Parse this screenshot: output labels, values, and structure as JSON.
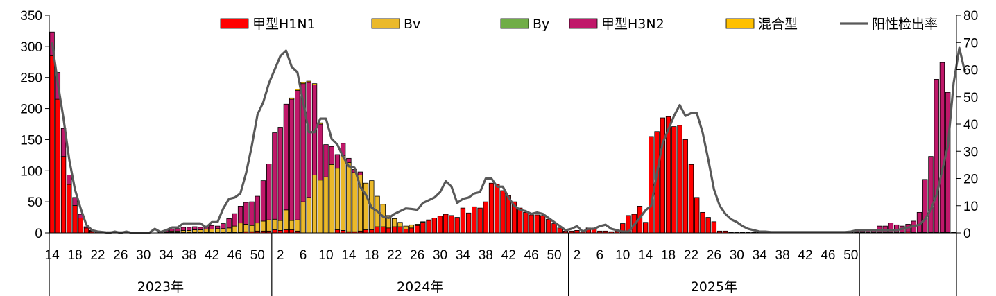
{
  "chart_data": {
    "type": "bar",
    "stacked": true,
    "title": "",
    "xlabel": "",
    "ylabel": "",
    "ylim": [
      0,
      350
    ],
    "yticks": [
      0,
      50,
      100,
      150,
      200,
      250,
      300,
      350
    ],
    "y2lim": [
      0,
      80
    ],
    "y2ticks": [
      0,
      10,
      20,
      30,
      40,
      50,
      60,
      70,
      80
    ],
    "grid": false,
    "legend_position": "top",
    "years": [
      {
        "label": "2023年",
        "start_week": 14,
        "end_week": 52
      },
      {
        "label": "2024年",
        "start_week": 1,
        "end_week": 52
      },
      {
        "label": "2025年",
        "start_week": 1,
        "end_week": 51
      }
    ],
    "week_tick_labels": [
      [
        "14",
        "18",
        "22",
        "26",
        "30",
        "34",
        "38",
        "42",
        "46",
        "50"
      ],
      [
        "2",
        "6",
        "10",
        "14",
        "18",
        "22",
        "26",
        "30",
        "34",
        "38",
        "42",
        "46",
        "50"
      ],
      [
        "2",
        "6",
        "10",
        "14",
        "18",
        "22",
        "26",
        "30",
        "34",
        "38",
        "42",
        "46",
        "50"
      ]
    ],
    "series": [
      {
        "name": "甲型H1N1",
        "color": "#ff0000",
        "kind": "bar",
        "values": [
          285,
          215,
          123,
          78,
          44,
          24,
          8,
          3,
          2,
          1,
          1,
          1,
          1,
          0,
          0,
          0,
          0,
          0,
          0,
          1,
          1,
          1,
          1,
          1,
          1,
          1,
          1,
          1,
          1,
          1,
          1,
          1,
          1,
          1,
          2,
          2,
          3,
          3,
          3,
          5,
          4,
          5,
          5,
          3,
          0,
          0,
          0,
          0,
          0,
          0,
          5,
          4,
          2,
          2,
          3,
          5,
          5,
          10,
          10,
          8,
          10,
          10,
          6,
          8,
          12,
          17,
          20,
          24,
          27,
          30,
          28,
          25,
          40,
          32,
          42,
          40,
          50,
          80,
          78,
          68,
          60,
          50,
          40,
          33,
          29,
          29,
          28,
          22,
          15,
          8,
          3,
          3,
          4,
          2,
          8,
          8,
          3,
          3,
          2,
          3,
          15,
          28,
          30,
          43,
          17,
          155,
          163,
          185,
          187,
          171,
          173,
          150,
          110,
          57,
          33,
          25,
          18,
          3,
          3,
          1,
          1,
          1,
          1,
          1,
          1,
          1,
          1,
          1,
          1,
          1,
          1,
          1,
          1,
          1,
          1,
          1,
          1,
          1,
          1,
          1,
          1,
          1,
          1,
          1,
          1,
          1,
          1,
          1,
          1,
          1,
          2,
          1,
          1,
          1,
          1,
          1,
          1,
          1,
          1
        ]
      },
      {
        "name": "Bv",
        "color": "#ebb92a",
        "kind": "bar",
        "values": [
          0,
          0,
          0,
          0,
          0,
          0,
          0,
          0,
          0,
          0,
          0,
          0,
          0,
          0,
          0,
          0,
          0,
          0,
          0,
          0,
          1,
          2,
          2,
          3,
          3,
          4,
          4,
          5,
          5,
          6,
          6,
          7,
          10,
          15,
          12,
          10,
          13,
          16,
          18,
          17,
          16,
          32,
          15,
          18,
          50,
          57,
          93,
          85,
          90,
          110,
          99,
          120,
          111,
          95,
          90,
          75,
          79,
          49,
          36,
          20,
          13,
          7,
          5,
          5,
          2,
          1,
          1,
          0,
          0,
          0,
          0,
          0,
          0,
          0,
          0,
          0,
          0,
          0,
          0,
          0,
          0,
          0,
          0,
          0,
          0,
          0,
          0,
          0,
          0,
          0,
          0,
          0,
          0,
          0,
          0,
          0,
          0,
          0,
          0,
          0,
          0,
          0,
          0,
          0,
          0,
          0,
          0,
          0,
          0,
          0,
          0,
          0,
          0,
          0,
          0,
          0,
          0,
          0,
          0,
          0,
          0,
          0,
          0,
          0,
          0,
          0,
          0,
          0,
          0,
          0,
          0,
          0,
          0,
          0,
          0,
          0,
          0,
          0,
          0,
          0,
          0,
          0,
          0,
          0,
          0,
          0,
          0,
          0,
          0,
          0,
          0,
          0,
          0,
          0,
          0,
          0,
          0,
          0,
          0,
          0,
          0,
          0,
          0,
          0,
          0,
          0,
          0,
          0,
          0,
          0,
          0,
          0
        ]
      },
      {
        "name": "By",
        "color": "#70ad47",
        "kind": "bar",
        "values": [
          0,
          0,
          0,
          0,
          0,
          0,
          0,
          0,
          0,
          0,
          0,
          0,
          0,
          0,
          0,
          0,
          0,
          0,
          0,
          0,
          0,
          0,
          0,
          0,
          0,
          0,
          0,
          0,
          0,
          0,
          0,
          0,
          0,
          0,
          0,
          0,
          0,
          0,
          0,
          0,
          0,
          0,
          0,
          0,
          0,
          0,
          0,
          0,
          0,
          0,
          0,
          0,
          0,
          0,
          0,
          0,
          0,
          0,
          0,
          0,
          0,
          0,
          0,
          0,
          0,
          0,
          0,
          0,
          0,
          0,
          0,
          0,
          0,
          0,
          0,
          0,
          0,
          0,
          0,
          0,
          0,
          0,
          0,
          0,
          0,
          0,
          0,
          0,
          0,
          0,
          0,
          0,
          0,
          0,
          0,
          0,
          0,
          0,
          0,
          0,
          0,
          0,
          0,
          0,
          0,
          0,
          0,
          0,
          0,
          0,
          0,
          0,
          0,
          0,
          0,
          0,
          0,
          0,
          0,
          0,
          0,
          0,
          0,
          0,
          0,
          0,
          0,
          0,
          0,
          0,
          0,
          0,
          0,
          0,
          0,
          0,
          0,
          0,
          0,
          0,
          0,
          0,
          0,
          0,
          0,
          0,
          0,
          0,
          0,
          0,
          0,
          0,
          0,
          0,
          0,
          0,
          0,
          0,
          0,
          0,
          0,
          0,
          0,
          0,
          0,
          0,
          0,
          0,
          0,
          0,
          0,
          0
        ]
      },
      {
        "name": "甲型H3N2",
        "color": "#c0186a",
        "kind": "bar",
        "values": [
          38,
          43,
          45,
          15,
          13,
          6,
          2,
          1,
          1,
          1,
          1,
          1,
          1,
          0,
          0,
          0,
          0,
          0,
          0,
          2,
          2,
          3,
          4,
          5,
          5,
          5,
          4,
          5,
          6,
          4,
          8,
          15,
          20,
          27,
          35,
          38,
          43,
          65,
          90,
          139,
          150,
          170,
          195,
          208,
          190,
          185,
          145,
          90,
          52,
          29,
          22,
          20,
          7,
          5,
          5,
          0,
          0,
          0,
          0,
          0,
          0,
          0,
          0,
          0,
          0,
          0,
          0,
          0,
          0,
          0,
          0,
          0,
          0,
          0,
          0,
          0,
          0,
          0,
          0,
          0,
          0,
          0,
          0,
          0,
          0,
          0,
          0,
          0,
          0,
          0,
          0,
          0,
          0,
          0,
          0,
          0,
          0,
          0,
          0,
          0,
          0,
          0,
          0,
          0,
          0,
          0,
          0,
          0,
          0,
          0,
          0,
          0,
          0,
          0,
          0,
          0,
          0,
          0,
          0,
          0,
          0,
          0,
          0,
          0,
          0,
          0,
          0,
          0,
          0,
          0,
          0,
          0,
          0,
          0,
          1,
          1,
          1,
          1,
          1,
          1,
          1,
          2,
          2,
          4,
          4,
          10,
          10,
          15,
          12,
          10,
          12,
          18,
          32,
          85,
          122,
          246,
          273,
          225,
          0,
          0,
          0,
          0,
          0,
          0,
          0,
          0,
          0,
          0,
          0,
          0,
          0
        ]
      },
      {
        "name": "混合型",
        "color": "#ffc000",
        "kind": "bar",
        "values": [
          0,
          0,
          0,
          0,
          0,
          0,
          0,
          0,
          0,
          0,
          0,
          0,
          0,
          0,
          0,
          0,
          0,
          0,
          0,
          0,
          0,
          0,
          0,
          0,
          0,
          0,
          0,
          0,
          0,
          0,
          0,
          0,
          0,
          0,
          0,
          0,
          0,
          0,
          0,
          0,
          0,
          0,
          2,
          2,
          2,
          2,
          2,
          2,
          0,
          0,
          0,
          0,
          0,
          0,
          0,
          0,
          0,
          0,
          0,
          0,
          0,
          0,
          0,
          0,
          0,
          0,
          0,
          0,
          0,
          0,
          0,
          0,
          0,
          0,
          0,
          0,
          0,
          0,
          0,
          0,
          0,
          0,
          0,
          0,
          0,
          0,
          0,
          0,
          0,
          0,
          0,
          0,
          0,
          0,
          0,
          0,
          0,
          0,
          0,
          0,
          0,
          0,
          0,
          0,
          0,
          0,
          0,
          0,
          0,
          0,
          0,
          0,
          0,
          0,
          0,
          0,
          0,
          0,
          0,
          0,
          0,
          0,
          0,
          0,
          0,
          0,
          0,
          0,
          0,
          0,
          0,
          0,
          0,
          0,
          0,
          0,
          0,
          0,
          0,
          0,
          0,
          0,
          0,
          0,
          0,
          0,
          0,
          0,
          0,
          0,
          0,
          0,
          0,
          0,
          0,
          0,
          0,
          0,
          0,
          0,
          0,
          0,
          0,
          0,
          0,
          0,
          0,
          0,
          0,
          0,
          0,
          0
        ]
      },
      {
        "name": "阳性检出率",
        "color": "#595959",
        "kind": "line",
        "axis": "right",
        "values": [
          70,
          55,
          42,
          27,
          16,
          9,
          3,
          1,
          0.5,
          0.3,
          0,
          0.5,
          0,
          0.5,
          0,
          0,
          0,
          0,
          1.5,
          0.3,
          1,
          2,
          2,
          3.5,
          3.5,
          3.5,
          3.5,
          2,
          4,
          4,
          9,
          12.5,
          13,
          14.5,
          22,
          32,
          43.5,
          48,
          55,
          60,
          65,
          67,
          61,
          59,
          48,
          37,
          37,
          42,
          42,
          34.5,
          32.5,
          28,
          24.5,
          24,
          17,
          14,
          9.3,
          8,
          6,
          5.5,
          7,
          8,
          9,
          8.8,
          8.5,
          11,
          12,
          13,
          15,
          19,
          17,
          11,
          12.5,
          13,
          14.5,
          15,
          20,
          20,
          17,
          17,
          13,
          10,
          8.5,
          8,
          7,
          7.5,
          7,
          5.5,
          4,
          2.5,
          1,
          1.5,
          2.5,
          0.5,
          1.5,
          1.5,
          2.5,
          3,
          1.5,
          1,
          0.5,
          0.5,
          3,
          5.5,
          8.3,
          10,
          22,
          33,
          38,
          43,
          47,
          43,
          44,
          44,
          37,
          27,
          16,
          10,
          7,
          5,
          4,
          2.5,
          1.5,
          1,
          0.5,
          0.5,
          0.3,
          0.3,
          0.3,
          0.3,
          0.3,
          0.3,
          0.3,
          0.3,
          0.3,
          0.3,
          0.3,
          0.3,
          0.3,
          0.3,
          0.5,
          1,
          1,
          1,
          1,
          1,
          1,
          1,
          1,
          1.5,
          2,
          2.5,
          3,
          5,
          8.5,
          14,
          23,
          32,
          55,
          68,
          59
        ]
      }
    ]
  }
}
